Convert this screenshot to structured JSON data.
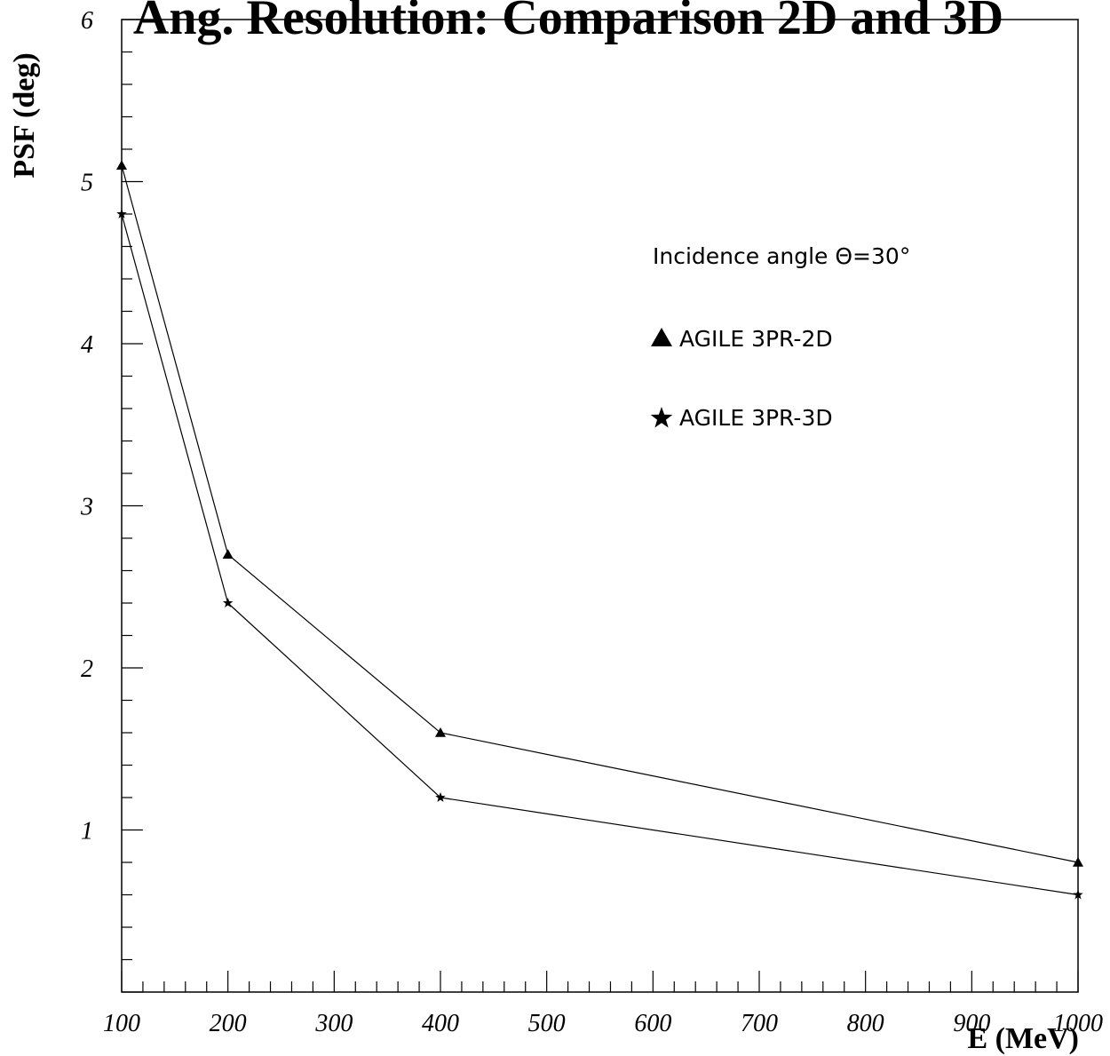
{
  "chart_data": {
    "type": "line",
    "title": "Ang. Resolution: Comparison 2D and 3D",
    "xlabel": "E (MeV)",
    "ylabel": "PSF (deg)",
    "xlim": [
      100,
      1000
    ],
    "ylim": [
      0,
      6
    ],
    "x_ticks": [
      100,
      200,
      300,
      400,
      500,
      600,
      700,
      800,
      900,
      1000
    ],
    "y_ticks": [
      1,
      2,
      3,
      4,
      5,
      6
    ],
    "grid": false,
    "legend_position": "upper-right",
    "annotation": "Incidence angle Θ=30°",
    "series": [
      {
        "name": "AGILE 3PR-2D",
        "marker": "triangle",
        "x": [
          100,
          200,
          400,
          1000
        ],
        "y": [
          5.1,
          2.7,
          1.6,
          0.8
        ]
      },
      {
        "name": "AGILE 3PR-3D",
        "marker": "star",
        "x": [
          100,
          200,
          400,
          1000
        ],
        "y": [
          4.8,
          2.4,
          1.2,
          0.6
        ]
      }
    ]
  }
}
